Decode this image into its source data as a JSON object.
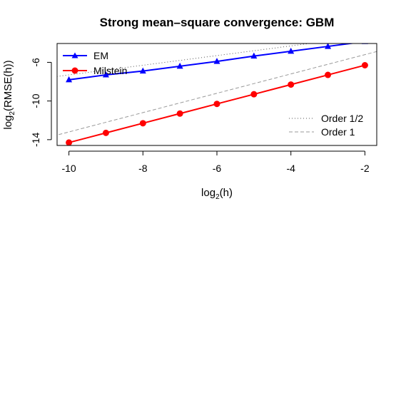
{
  "chart_data": {
    "type": "line",
    "title": "Strong mean–square convergence: GBM",
    "xlabel_base": "log",
    "xlabel_sub": "2",
    "xlabel_arg": "(h)",
    "ylabel_base": "log",
    "ylabel_sub": "2",
    "ylabel_arg": "(RMSE(h))",
    "x": [
      -10,
      -9,
      -8,
      -7,
      -6,
      -5,
      -4,
      -3,
      -2
    ],
    "xlim": [
      -10.32,
      -1.68
    ],
    "ylim": [
      -14.6,
      -4.05
    ],
    "xticks": [
      -10,
      -8,
      -6,
      -4,
      -2
    ],
    "yticks": [
      -6,
      -10,
      -14
    ],
    "series": [
      {
        "name": "EM",
        "color": "#0000ff",
        "marker": "triangle",
        "values": [
          -7.8,
          -7.3,
          -6.9,
          -6.4,
          -5.9,
          -5.35,
          -4.85,
          -4.35,
          -3.85
        ]
      },
      {
        "name": "Milstein",
        "color": "#ff0000",
        "marker": "circle",
        "values": [
          -14.3,
          -13.3,
          -12.3,
          -11.3,
          -10.3,
          -9.3,
          -8.3,
          -7.3,
          -6.3
        ]
      }
    ],
    "reference_lines": [
      {
        "name": "Order 1/2",
        "style": "dotted",
        "color": "#555555",
        "slope": 0.5,
        "point": [
          -2,
          -3.3
        ]
      },
      {
        "name": "Order 1",
        "style": "dashed",
        "color": "#999999",
        "slope": 1.0,
        "point": [
          -2,
          -5.2
        ]
      }
    ],
    "legend_top_left": [
      "EM",
      "Milstein"
    ],
    "legend_bottom_right": [
      "Order 1/2",
      "Order 1"
    ]
  }
}
